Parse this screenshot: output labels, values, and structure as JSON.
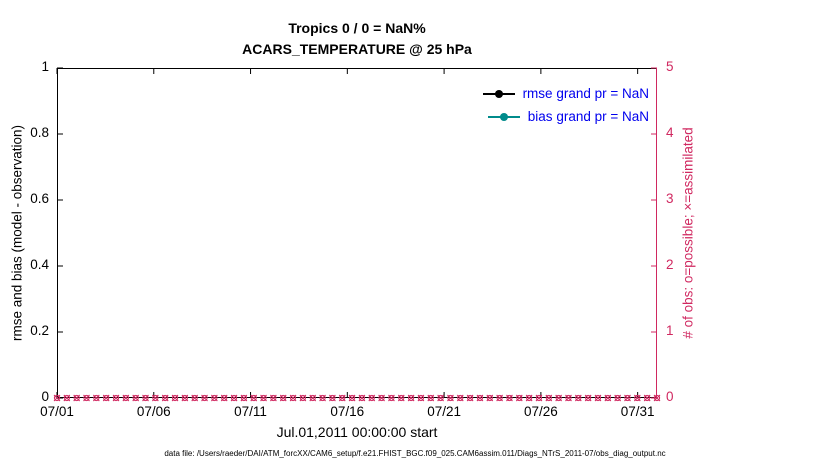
{
  "chart_data": {
    "type": "line",
    "title": "Tropics 0 / 0 = NaN%",
    "subtitle": "ACARS_TEMPERATURE @ 25 hPa",
    "xlabel": "Jul.01,2011 00:00:00 start",
    "grid": "off",
    "legend_position": "top-right-inside",
    "legend_text_color": "#0000ee",
    "left_axis": {
      "label": "rmse and bias (model - observation)",
      "lim": [
        0,
        1
      ],
      "ticks": [
        0,
        0.2,
        0.4,
        0.6,
        0.8,
        1
      ],
      "color": "#000000"
    },
    "right_axis": {
      "label": "# of obs: o=possible; ×=assimilated",
      "lim": [
        0,
        5
      ],
      "ticks": [
        0,
        1,
        2,
        3,
        4,
        5
      ],
      "color": "#d02860"
    },
    "x_axis": {
      "lim_days": [
        0,
        31
      ],
      "tick_days": [
        0,
        5,
        10,
        15,
        20,
        25,
        30
      ],
      "tick_labels": [
        "07/01",
        "07/06",
        "07/11",
        "07/16",
        "07/21",
        "07/26",
        "07/31"
      ]
    },
    "series": [
      {
        "name": "rmse",
        "color": "#000000",
        "values": [],
        "note": "all NaN, nothing plotted"
      },
      {
        "name": "bias",
        "color": "#008b8b",
        "values": [],
        "note": "all NaN, nothing plotted"
      },
      {
        "name": "possible-obs",
        "marker": "o",
        "color": "#d02860",
        "value": 0,
        "count": 62
      },
      {
        "name": "assimilated-obs",
        "marker": "x",
        "color": "#d02860",
        "value": 0,
        "count": 62
      }
    ],
    "legend": [
      {
        "label": "rmse grand pr = NaN",
        "line_color": "#000000"
      },
      {
        "label": "bias grand pr = NaN",
        "line_color": "#008b8b"
      }
    ]
  },
  "caption": {
    "text": "data file: /Users/raeder/DAI/ATM_forcXX/CAM6_setup/f.e21.FHIST_BGC.f09_025.CAM6assim.011/Diags_NTrS_2011-07/obs_diag_output.nc"
  }
}
